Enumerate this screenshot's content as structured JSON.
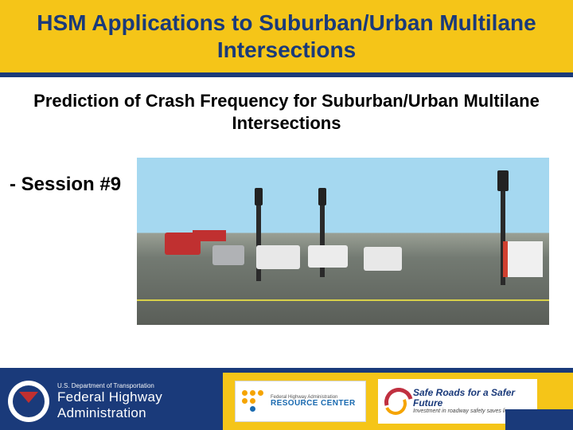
{
  "colors": {
    "title_bg": "#f5c518",
    "title_text": "#1a3a7a",
    "divider": "#1a3a7a",
    "body_bg": "#ffffff",
    "text": "#000000",
    "fhwa_bg": "#1a3a7a",
    "accent_red": "#c03040",
    "accent_orange": "#f5a400",
    "resource_blue": "#1a6ab0"
  },
  "typography": {
    "title_fontsize": 28,
    "subtitle_fontsize": 22,
    "session_fontsize": 24,
    "family": "Arial"
  },
  "title": "HSM Applications to Suburban/Urban Multilane Intersections",
  "subtitle": "Prediction of Crash Frequency for Suburban/Urban Multilane Intersections",
  "session_label": "- Session #9",
  "photo": {
    "description": "Intersection crash scene with emergency vehicles, traffic signals, and multilane road",
    "sky_color": "#a5d8f0",
    "road_color": "#6a6e68"
  },
  "footer": {
    "fhwa": {
      "dept": "U.S. Department of Transportation",
      "name_line1": "Federal Highway",
      "name_line2": "Administration"
    },
    "resource_center": {
      "small": "Federal Highway Administration",
      "big": "RESOURCE CENTER"
    },
    "safe_roads": {
      "line1": "Safe Roads for a Safer Future",
      "line2": "Investment in roadway safety saves lives"
    }
  }
}
